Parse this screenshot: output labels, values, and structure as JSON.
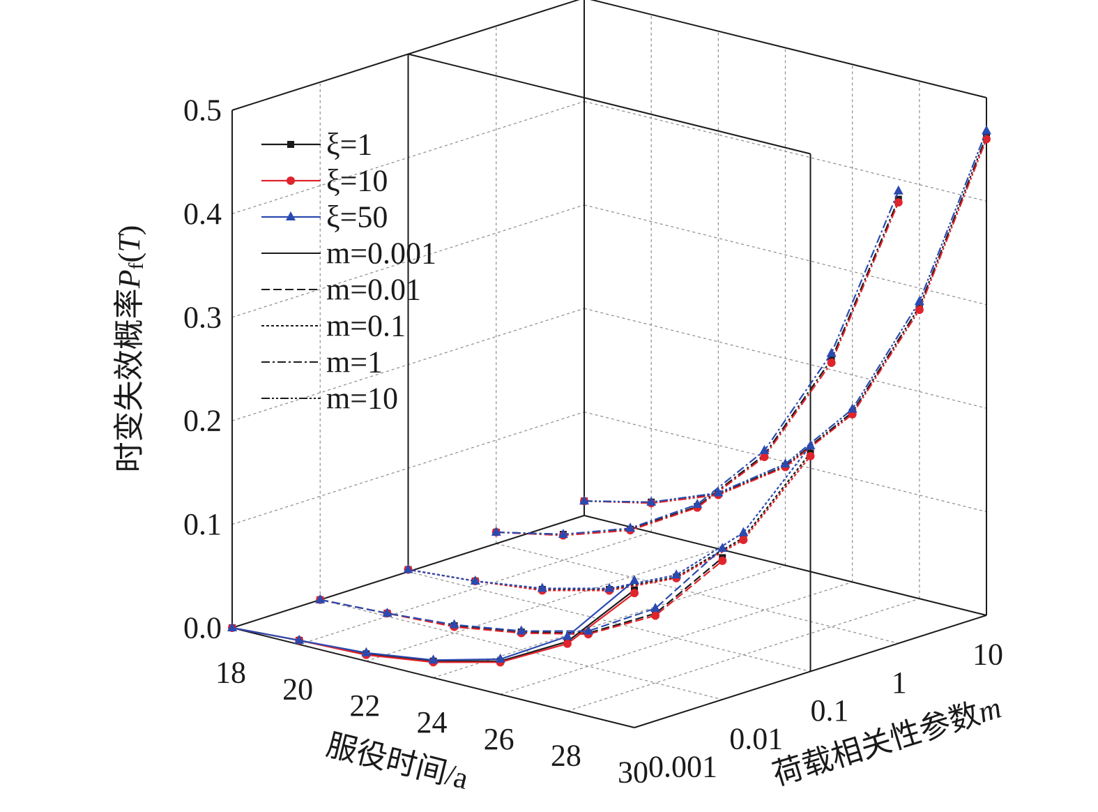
{
  "chart_data": {
    "type": "line3d",
    "zlabel": [
      "时变失效概率",
      "P",
      "f",
      "(",
      "T",
      ")"
    ],
    "xlabel": "服役时间/a",
    "mlabel": [
      "荷载相关性参数",
      "m"
    ],
    "x": [
      18,
      20,
      22,
      24,
      26,
      28,
      30
    ],
    "xlim": [
      18,
      30
    ],
    "xticks": [
      18,
      20,
      22,
      24,
      26,
      28,
      30
    ],
    "m_categories": [
      "0.001",
      "0.01",
      "0.1",
      "1",
      "10"
    ],
    "zlim": [
      0,
      0.5
    ],
    "zticks": [
      {
        "value": 0,
        "label": "0.0"
      },
      0.1,
      0.2,
      0.3,
      0.4,
      0.5
    ],
    "grid": true,
    "legend_position": "upper left",
    "m_styles": [
      {
        "name": "m=0.001",
        "dash": "none"
      },
      {
        "name": "m=0.01",
        "dash": "12,5"
      },
      {
        "name": "m=0.1",
        "dash": "4,3"
      },
      {
        "name": "m=1",
        "dash": "12,4,3,4"
      },
      {
        "name": "m=10",
        "dash": "12,3,3,3,3,3"
      }
    ],
    "series": [
      {
        "name": "ξ=1",
        "color": "#1a1a1a",
        "marker": "square",
        "lines": [
          [
            0.0,
            0.004,
            0.007,
            0.016,
            0.032,
            0.067,
            0.133
          ],
          [
            0.0,
            0.003,
            0.007,
            0.017,
            0.032,
            0.067,
            0.137
          ],
          [
            0.002,
            0.007,
            0.015,
            0.031,
            0.059,
            0.113,
            0.211
          ],
          [
            0.011,
            0.025,
            0.046,
            0.084,
            0.15,
            0.258,
            0.429
          ],
          [
            0.014,
            0.029,
            0.053,
            0.096,
            0.164,
            0.282,
            0.463
          ]
        ]
      },
      {
        "name": "ξ=10",
        "color": "#e0242c",
        "marker": "circle",
        "lines": [
          [
            0.0,
            0.004,
            0.006,
            0.015,
            0.031,
            0.065,
            0.13
          ],
          [
            0.0,
            0.003,
            0.006,
            0.016,
            0.031,
            0.065,
            0.134
          ],
          [
            0.002,
            0.007,
            0.014,
            0.03,
            0.058,
            0.111,
            0.208
          ],
          [
            0.011,
            0.024,
            0.045,
            0.083,
            0.148,
            0.255,
            0.426
          ],
          [
            0.014,
            0.028,
            0.052,
            0.095,
            0.162,
            0.279,
            0.46
          ]
        ]
      },
      {
        "name": "ξ=50",
        "color": "#2b4ab0",
        "marker": "triangle",
        "lines": [
          [
            0.0,
            0.004,
            0.008,
            0.017,
            0.034,
            0.072,
            0.142
          ],
          [
            0.0,
            0.003,
            0.008,
            0.018,
            0.034,
            0.072,
            0.146
          ],
          [
            0.002,
            0.007,
            0.016,
            0.032,
            0.061,
            0.118,
            0.218
          ],
          [
            0.011,
            0.025,
            0.047,
            0.086,
            0.154,
            0.264,
            0.437
          ],
          [
            0.014,
            0.029,
            0.054,
            0.098,
            0.167,
            0.287,
            0.468
          ]
        ]
      }
    ]
  }
}
